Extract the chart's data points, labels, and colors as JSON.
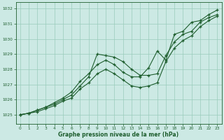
{
  "xlabel": "Graphe pression niveau de la mer (hPa)",
  "bg_color": "#cce9e4",
  "grid_color": "#99ccbb",
  "line_color": "#1e5e2e",
  "xlim": [
    -0.5,
    23.5
  ],
  "ylim": [
    1024.4,
    1032.4
  ],
  "yticks": [
    1025,
    1026,
    1027,
    1028,
    1029,
    1030,
    1031,
    1032
  ],
  "xticks": [
    0,
    1,
    2,
    3,
    4,
    5,
    6,
    7,
    8,
    9,
    10,
    11,
    12,
    13,
    14,
    15,
    16,
    17,
    18,
    19,
    20,
    21,
    22,
    23
  ],
  "line1_x": [
    0,
    1,
    2,
    3,
    4,
    5,
    6,
    7,
    8,
    9,
    10,
    11,
    12,
    13,
    14,
    15,
    16,
    17,
    18,
    19,
    20,
    21,
    22,
    23
  ],
  "line1_y": [
    1025.0,
    1025.1,
    1025.3,
    1025.5,
    1025.7,
    1026.0,
    1026.3,
    1026.9,
    1027.5,
    1029.0,
    1028.9,
    1028.8,
    1028.5,
    1028.0,
    1027.6,
    1027.6,
    1027.7,
    1028.9,
    1029.8,
    1030.3,
    1030.5,
    1031.1,
    1031.4,
    1031.6
  ],
  "line2_x": [
    0,
    1,
    2,
    3,
    4,
    5,
    6,
    7,
    8,
    9,
    10,
    11,
    12,
    13,
    14,
    15,
    16,
    17,
    18,
    19,
    20,
    21,
    22,
    23
  ],
  "line2_y": [
    1025.0,
    1025.1,
    1025.3,
    1025.5,
    1025.8,
    1026.1,
    1026.5,
    1027.2,
    1027.7,
    1028.3,
    1028.6,
    1028.3,
    1027.8,
    1027.5,
    1027.5,
    1028.1,
    1029.2,
    1028.6,
    1030.3,
    1030.5,
    1031.1,
    1031.2,
    1031.6,
    1031.9
  ],
  "line3_x": [
    0,
    1,
    2,
    3,
    4,
    5,
    6,
    7,
    8,
    9,
    10,
    11,
    12,
    13,
    14,
    15,
    16,
    17,
    18,
    19,
    20,
    21,
    22,
    23
  ],
  "line3_y": [
    1025.0,
    1025.1,
    1025.2,
    1025.4,
    1025.6,
    1025.9,
    1026.1,
    1026.7,
    1027.1,
    1027.7,
    1028.0,
    1027.7,
    1027.3,
    1026.9,
    1026.8,
    1026.9,
    1027.1,
    1028.5,
    1029.4,
    1029.9,
    1030.2,
    1030.8,
    1031.2,
    1031.5
  ]
}
